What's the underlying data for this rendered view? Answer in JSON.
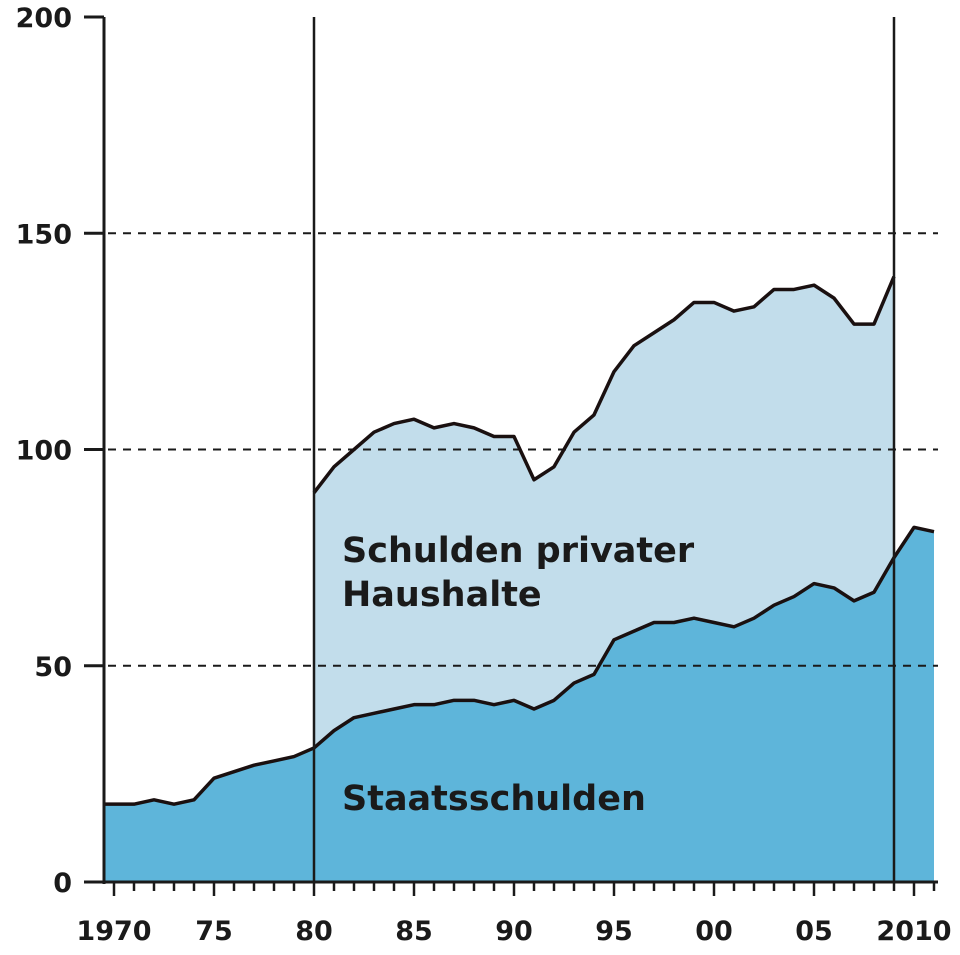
{
  "chart_data": {
    "type": "area",
    "title": "",
    "xlabel": "",
    "ylabel": "",
    "xlim": [
      1969.5,
      2011.1
    ],
    "ylim": [
      0,
      200
    ],
    "y_ticks": [
      0,
      50,
      100,
      150,
      200
    ],
    "y_tick_labels": [
      "0",
      "50",
      "100",
      "150",
      "200"
    ],
    "x_ticks": [
      1970,
      1975,
      1980,
      1985,
      1990,
      1995,
      2000,
      2005,
      2010
    ],
    "x_tick_labels": [
      "1970",
      "75",
      "80",
      "85",
      "90",
      "95",
      "00",
      "05",
      "2010"
    ],
    "grid_lines_dashed": [
      50,
      100,
      150
    ],
    "vertical_markers": [
      1980,
      2009
    ],
    "colors": {
      "staatsschulden": "#5eb5da",
      "private": "#c2ddeb",
      "line": "#1a1010"
    },
    "series": [
      {
        "name": "Staatsschulden",
        "x": [
          1969.5,
          1970,
          1971,
          1972,
          1973,
          1974,
          1975,
          1976,
          1977,
          1978,
          1979,
          1980,
          1981,
          1982,
          1983,
          1984,
          1985,
          1986,
          1987,
          1988,
          1989,
          1990,
          1991,
          1992,
          1993,
          1994,
          1995,
          1996,
          1997,
          1998,
          1999,
          2000,
          2001,
          2002,
          2003,
          2004,
          2005,
          2006,
          2007,
          2008,
          2009,
          2010,
          2011
        ],
        "values": [
          18,
          18,
          18,
          19,
          18,
          19,
          24,
          25.5,
          27,
          28,
          29,
          31,
          35,
          38,
          39,
          40,
          41,
          41,
          42,
          42,
          41,
          42,
          40,
          42,
          46,
          48,
          56,
          58,
          60,
          60,
          61,
          60,
          59,
          61,
          64,
          66,
          69,
          68,
          65,
          67,
          75,
          82,
          81
        ]
      },
      {
        "name": "Schulden privater Haushalte",
        "x": [
          1980,
          1981,
          1982,
          1983,
          1984,
          1985,
          1986,
          1987,
          1988,
          1989,
          1990,
          1991,
          1992,
          1993,
          1994,
          1995,
          1996,
          1997,
          1998,
          1999,
          2000,
          2001,
          2002,
          2003,
          2004,
          2005,
          2006,
          2007,
          2008,
          2009
        ],
        "values": [
          90,
          96,
          100,
          104,
          106,
          107,
          105,
          106,
          105,
          103,
          103,
          93,
          96,
          104,
          108,
          118,
          124,
          127,
          130,
          134,
          134,
          132,
          133,
          137,
          137,
          138,
          135,
          129,
          129,
          140
        ]
      }
    ],
    "labels": {
      "private_line1": "Schulden privater",
      "private_line2": "Haushalte",
      "staat": "Staatsschulden"
    }
  }
}
